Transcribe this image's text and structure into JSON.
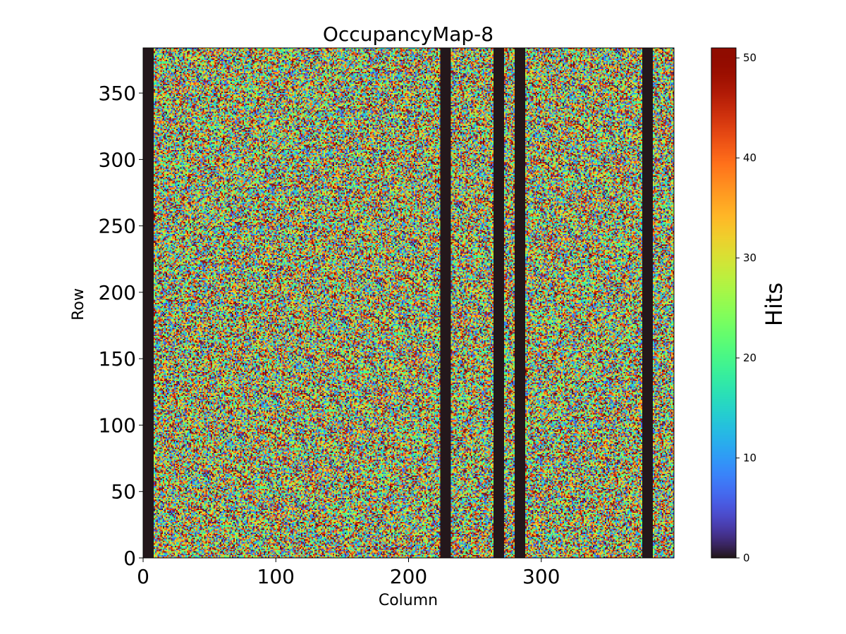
{
  "chart_data": {
    "type": "heatmap",
    "title": "OccupancyMap-8",
    "xlabel": "Column",
    "ylabel": "Row",
    "xlim": [
      0,
      400
    ],
    "ylim": [
      0,
      384
    ],
    "xticks": [
      0,
      100,
      200,
      300
    ],
    "yticks": [
      0,
      50,
      100,
      150,
      200,
      250,
      300,
      350
    ],
    "colorbar": {
      "label": "Hits",
      "range": [
        0,
        51
      ],
      "ticks": [
        0,
        10,
        20,
        30,
        40,
        50
      ],
      "colormap": "turbo"
    },
    "dead_column_ranges": [
      [
        0,
        8
      ],
      [
        224,
        232
      ],
      [
        264,
        272
      ],
      [
        280,
        288
      ],
      [
        376,
        384
      ]
    ],
    "active_value_range": [
      0,
      51
    ]
  }
}
